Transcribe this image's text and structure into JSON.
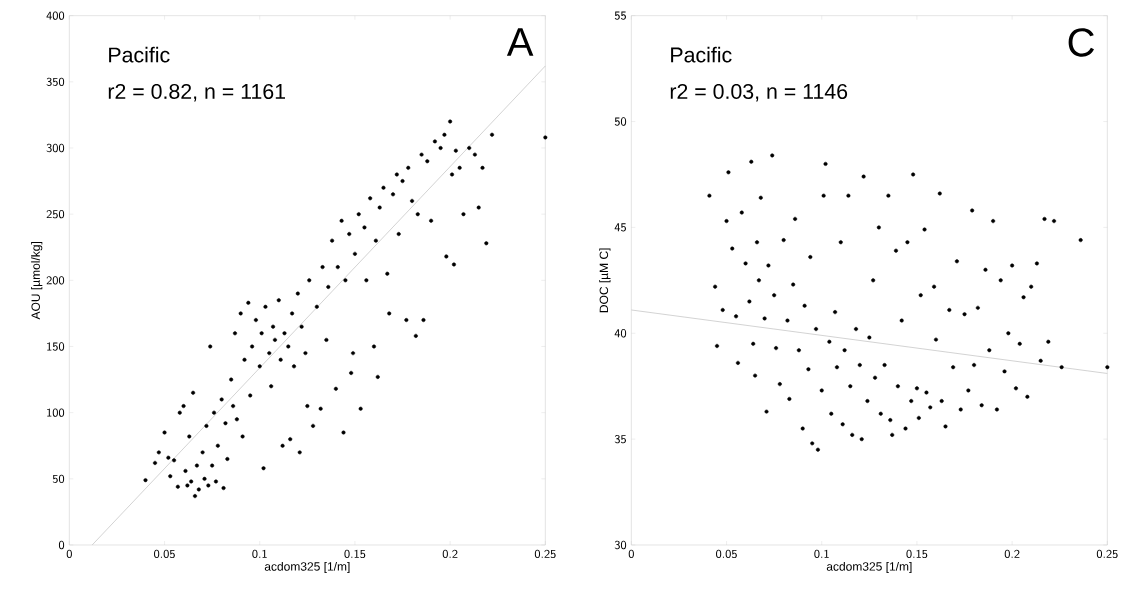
{
  "chart_data": [
    {
      "type": "scatter",
      "xlabel": "acdom325 [1/m]",
      "ylabel": "AOU [µmol/kg]",
      "annotations": [
        "Pacific",
        "r2 = 0.82, n = 1161",
        "A"
      ],
      "xlim": [
        0,
        0.25
      ],
      "ylim": [
        0,
        400
      ],
      "xticks": [
        0,
        0.05,
        0.1,
        0.15,
        0.2,
        0.25
      ],
      "yticks": [
        0,
        50,
        100,
        150,
        200,
        250,
        300,
        350,
        400
      ],
      "series": [
        {
          "color": "#000000",
          "x": [
            0.04,
            0.045,
            0.047,
            0.05,
            0.052,
            0.053,
            0.055,
            0.057,
            0.058,
            0.06,
            0.061,
            0.062,
            0.063,
            0.064,
            0.065,
            0.066,
            0.067,
            0.068,
            0.07,
            0.071,
            0.072,
            0.073,
            0.074,
            0.075,
            0.076,
            0.077,
            0.078,
            0.08,
            0.081,
            0.082,
            0.083,
            0.085,
            0.086,
            0.087,
            0.088,
            0.09,
            0.091,
            0.092,
            0.094,
            0.095,
            0.096,
            0.098,
            0.1,
            0.101,
            0.102,
            0.103,
            0.105,
            0.106,
            0.107,
            0.108,
            0.11,
            0.111,
            0.112,
            0.113,
            0.115,
            0.116,
            0.117,
            0.118,
            0.12,
            0.121,
            0.122,
            0.124,
            0.125,
            0.126,
            0.128,
            0.13,
            0.132,
            0.133,
            0.135,
            0.136,
            0.138,
            0.14,
            0.141,
            0.143,
            0.144,
            0.145,
            0.147,
            0.148,
            0.149,
            0.15,
            0.152,
            0.153,
            0.155,
            0.156,
            0.158,
            0.16,
            0.161,
            0.162,
            0.163,
            0.165,
            0.167,
            0.168,
            0.17,
            0.172,
            0.173,
            0.175,
            0.177,
            0.178,
            0.18,
            0.182,
            0.183,
            0.185,
            0.186,
            0.188,
            0.19,
            0.192,
            0.195,
            0.197,
            0.198,
            0.2,
            0.201,
            0.202,
            0.203,
            0.205,
            0.207,
            0.21,
            0.213,
            0.215,
            0.217,
            0.219,
            0.222,
            0.25
          ],
          "values": [
            49,
            62,
            70,
            85,
            66,
            52,
            64,
            44,
            100,
            105,
            56,
            45,
            82,
            48,
            115,
            37,
            60,
            42,
            70,
            50,
            90,
            45,
            150,
            60,
            100,
            48,
            75,
            110,
            43,
            92,
            65,
            125,
            105,
            160,
            95,
            175,
            82,
            140,
            183,
            113,
            150,
            170,
            135,
            160,
            58,
            180,
            145,
            120,
            165,
            155,
            185,
            140,
            75,
            160,
            150,
            80,
            175,
            135,
            190,
            70,
            165,
            145,
            105,
            200,
            90,
            180,
            103,
            210,
            155,
            195,
            230,
            118,
            210,
            245,
            85,
            200,
            235,
            130,
            145,
            220,
            250,
            103,
            240,
            200,
            262,
            150,
            230,
            127,
            255,
            270,
            205,
            175,
            265,
            280,
            235,
            275,
            170,
            285,
            260,
            158,
            250,
            295,
            170,
            290,
            245,
            305,
            300,
            310,
            218,
            320,
            280,
            212,
            298,
            285,
            250,
            300,
            295,
            255,
            285,
            228,
            310,
            308
          ]
        },
        {
          "type": "line",
          "color": "#c8c8c8",
          "x": [
            0.012,
            0.25
          ],
          "values": [
            0,
            362
          ]
        }
      ]
    },
    {
      "type": "scatter",
      "xlabel": "acdom325 [1/m]",
      "ylabel": "DOC [µM C]",
      "annotations": [
        "Pacific",
        "r2 = 0.03, n = 1146",
        "C"
      ],
      "xlim": [
        0,
        0.25
      ],
      "ylim": [
        30,
        55
      ],
      "xticks": [
        0,
        0.05,
        0.1,
        0.15,
        0.2,
        0.25
      ],
      "yticks": [
        30,
        35,
        40,
        45,
        50,
        55
      ],
      "series": [
        {
          "color": "#000000",
          "x": [
            0.041,
            0.044,
            0.045,
            0.048,
            0.05,
            0.051,
            0.053,
            0.055,
            0.056,
            0.058,
            0.06,
            0.062,
            0.063,
            0.064,
            0.065,
            0.066,
            0.067,
            0.068,
            0.07,
            0.071,
            0.072,
            0.074,
            0.075,
            0.076,
            0.078,
            0.08,
            0.082,
            0.083,
            0.085,
            0.086,
            0.088,
            0.09,
            0.091,
            0.093,
            0.094,
            0.095,
            0.097,
            0.098,
            0.1,
            0.101,
            0.102,
            0.104,
            0.105,
            0.107,
            0.108,
            0.11,
            0.111,
            0.112,
            0.114,
            0.115,
            0.116,
            0.118,
            0.12,
            0.121,
            0.122,
            0.124,
            0.125,
            0.127,
            0.128,
            0.13,
            0.131,
            0.133,
            0.135,
            0.136,
            0.137,
            0.139,
            0.14,
            0.142,
            0.144,
            0.145,
            0.147,
            0.148,
            0.15,
            0.151,
            0.152,
            0.154,
            0.155,
            0.157,
            0.159,
            0.16,
            0.162,
            0.163,
            0.165,
            0.167,
            0.169,
            0.171,
            0.173,
            0.175,
            0.177,
            0.179,
            0.18,
            0.182,
            0.184,
            0.186,
            0.188,
            0.19,
            0.192,
            0.194,
            0.196,
            0.198,
            0.2,
            0.202,
            0.204,
            0.206,
            0.208,
            0.21,
            0.213,
            0.215,
            0.217,
            0.219,
            0.222,
            0.226,
            0.236,
            0.25
          ],
          "values": [
            46.5,
            42.2,
            39.4,
            41.1,
            45.3,
            47.6,
            44,
            40.8,
            38.6,
            45.7,
            43.3,
            41.5,
            48.1,
            39.5,
            38,
            44.3,
            42.5,
            46.4,
            40.7,
            36.3,
            43.2,
            48.4,
            41.8,
            39.3,
            37.6,
            44.4,
            40.6,
            36.9,
            42.3,
            45.4,
            39.2,
            35.5,
            41.3,
            38.3,
            43.6,
            34.8,
            40.2,
            34.5,
            37.3,
            46.5,
            48,
            39.6,
            36.2,
            41,
            38.4,
            44.3,
            35.7,
            39.2,
            46.5,
            37.5,
            35.2,
            40.2,
            38.5,
            35,
            47.4,
            36.8,
            39.8,
            42.5,
            37.9,
            45,
            36.2,
            38.5,
            46.5,
            35.9,
            35.2,
            43.9,
            37.5,
            40.6,
            35.5,
            44.3,
            36.8,
            47.5,
            37.4,
            36,
            41.8,
            44.9,
            37.2,
            36.5,
            42.2,
            39.7,
            46.6,
            36.8,
            35.6,
            41.1,
            38.4,
            43.4,
            36.4,
            40.9,
            37.3,
            45.8,
            38.5,
            41.2,
            36.6,
            43,
            39.2,
            45.3,
            36.4,
            42.5,
            38.2,
            40,
            43.2,
            37.4,
            39.5,
            41.7,
            37,
            42.2,
            43.3,
            38.7,
            45.4,
            39.6,
            45.3,
            38.4,
            44.4,
            38.4
          ]
        },
        {
          "type": "line",
          "color": "#c8c8c8",
          "x": [
            0,
            0.25
          ],
          "values": [
            41.1,
            38.1
          ]
        }
      ]
    }
  ]
}
